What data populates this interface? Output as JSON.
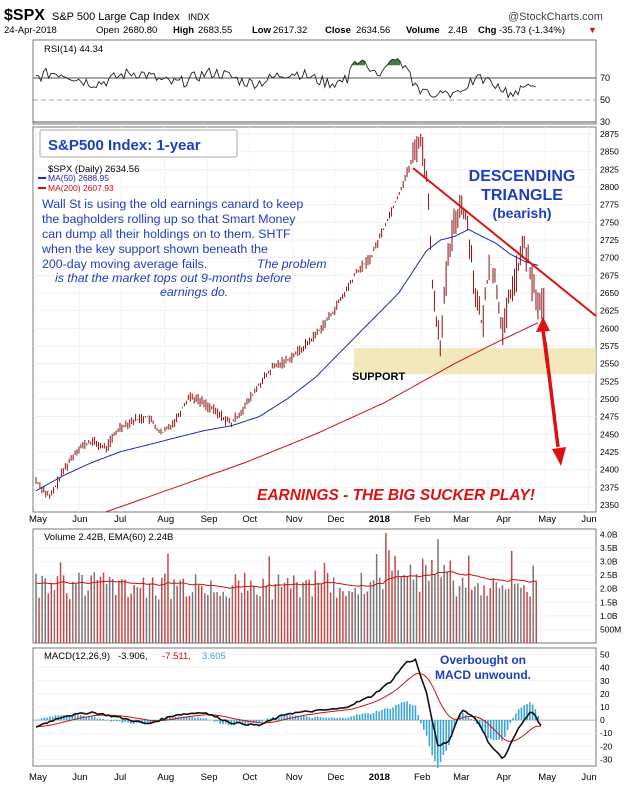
{
  "header": {
    "symbol": "$SPX",
    "name": "S&P 500 Large Cap Index",
    "exchange": "INDX",
    "date": "24-Apr-2018",
    "open_label": "Open",
    "open": "2680.80",
    "high_label": "High",
    "high": "2683.55",
    "low_label": "Low",
    "low": "2617.32",
    "close_label": "Close",
    "close": "2634.56",
    "volume_label": "Volume",
    "volume": "2.4B",
    "chg_label": "Chg",
    "chg": "-35.73 (-1.34%)",
    "chg_arrow": "▼",
    "brand": "@StockCharts.com"
  },
  "colors": {
    "price_bar": "#8b1010",
    "ma50": "#1a2ea6",
    "ma200": "#cc1111",
    "volume_bar": "#c34848",
    "macd_hist": "#3aa6d8",
    "rsi_fill": "#3d7a3d",
    "support": "#f1e3b0",
    "annotation_blue": "#1d3fbf",
    "annotation_red": "#dd1111"
  },
  "rsi_panel": {
    "legend": "RSI(14) 44.34",
    "ticks": [
      "70",
      "50",
      "30"
    ]
  },
  "price_panel": {
    "legend_title": "$SPX (Daily) 2634.56",
    "legend_ma50": "MA(50) 2688.95",
    "legend_ma200": "MA(200) 2607.93",
    "y_ticks": [
      "2875",
      "2850",
      "2825",
      "2800",
      "2775",
      "2750",
      "2725",
      "2700",
      "2675",
      "2650",
      "2625",
      "2600",
      "2575",
      "2550",
      "2525",
      "2500",
      "2475",
      "2450",
      "2425",
      "2400",
      "2375",
      "2350"
    ]
  },
  "annotations": {
    "box_title": "S&P500 Index: 1-year",
    "pattern_line1": "DESCENDING",
    "pattern_line2": "TRIANGLE",
    "pattern_line3": "(bearish)",
    "commentary_1": "Wall St is using the old earnings canard to keep",
    "commentary_2": "the bagholders rolling up so that Smart Money",
    "commentary_3": "can dump all their holdings on to them. SHTF",
    "commentary_4": "when the key support shown beneath the",
    "commentary_5": "200-day moving average fails.",
    "commentary_6": "The problem",
    "commentary_7": "is that the market tops out 9-months before",
    "commentary_8": "earnings do.",
    "support": "SUPPORT",
    "earnings": "EARNINGS - THE BIG SUCKER PLAY!",
    "macd_note_1": "Overbought on",
    "macd_note_2": "MACD unwound."
  },
  "volume_panel": {
    "legend": "Volume 2.42B, EMA(60) 2.24B",
    "y_ticks": [
      "4.0B",
      "3.5B",
      "3.0B",
      "2.5B",
      "2.0B",
      "1.5B",
      "1.0B",
      "500M"
    ]
  },
  "macd_panel": {
    "legend_label": "MACD(12,26,9)",
    "macd": "-3.906,",
    "signal": "-7.511,",
    "hist": "3.605",
    "y_ticks": [
      "50",
      "40",
      "30",
      "20",
      "10",
      "0",
      "-10",
      "-20",
      "-30"
    ]
  },
  "chart_data": {
    "type": "line",
    "title": "S&P 500 Large Cap Index",
    "x_labels": [
      "May",
      "Jun",
      "Jul",
      "Aug",
      "Sep",
      "Oct",
      "Nov",
      "Dec",
      "2018",
      "Feb",
      "Mar",
      "Apr",
      "May",
      "Jun"
    ],
    "ylim": [
      2340,
      2885
    ],
    "series": [
      {
        "name": "$SPX (Daily)",
        "x": [
          0,
          10,
          20,
          30,
          40,
          50,
          60,
          70,
          80,
          90,
          100,
          110,
          120,
          130,
          140,
          150,
          160,
          170,
          180,
          190,
          200,
          210,
          220,
          230,
          240,
          250,
          260,
          270,
          275,
          280,
          285,
          290,
          295,
          300,
          305,
          310,
          315,
          320,
          325,
          330,
          335,
          340,
          345,
          350,
          355,
          360,
          365
        ],
        "values": [
          2385,
          2360,
          2400,
          2430,
          2440,
          2430,
          2460,
          2470,
          2475,
          2450,
          2470,
          2505,
          2495,
          2480,
          2465,
          2490,
          2520,
          2545,
          2555,
          2570,
          2590,
          2615,
          2645,
          2680,
          2700,
          2745,
          2790,
          2840,
          2872,
          2820,
          2640,
          2580,
          2690,
          2750,
          2780,
          2740,
          2650,
          2600,
          2700,
          2660,
          2590,
          2650,
          2680,
          2720,
          2670,
          2634,
          2634
        ]
      },
      {
        "name": "MA(50)",
        "x": [
          0,
          20,
          40,
          60,
          80,
          100,
          120,
          140,
          160,
          180,
          200,
          220,
          240,
          260,
          280,
          290,
          300,
          310,
          320,
          330,
          340,
          350,
          360
        ],
        "values": [
          2370,
          2392,
          2410,
          2425,
          2435,
          2445,
          2455,
          2462,
          2475,
          2500,
          2530,
          2570,
          2610,
          2650,
          2710,
          2725,
          2730,
          2740,
          2730,
          2720,
          2705,
          2695,
          2689
        ]
      },
      {
        "name": "MA(200)",
        "x": [
          50,
          100,
          150,
          200,
          250,
          300,
          330,
          360
        ],
        "values": [
          2340,
          2375,
          2410,
          2450,
          2495,
          2550,
          2580,
          2608
        ]
      }
    ],
    "rsi": {
      "ylim": [
        0,
        100
      ],
      "levels": [
        70,
        50,
        30
      ],
      "last": 44.34
    },
    "volume": {
      "ylim_billions": [
        0,
        4.2
      ],
      "last_billions": 2.42,
      "ema60_billions": 2.24
    },
    "macd": {
      "ylim": [
        -35,
        55
      ],
      "macd_last": -3.906,
      "signal_last": -7.511,
      "hist_last": 3.605
    },
    "support_zone": [
      2535,
      2572
    ],
    "triangle_line": {
      "x": [
        270,
        400
      ],
      "values": [
        2872,
        2648
      ]
    }
  }
}
